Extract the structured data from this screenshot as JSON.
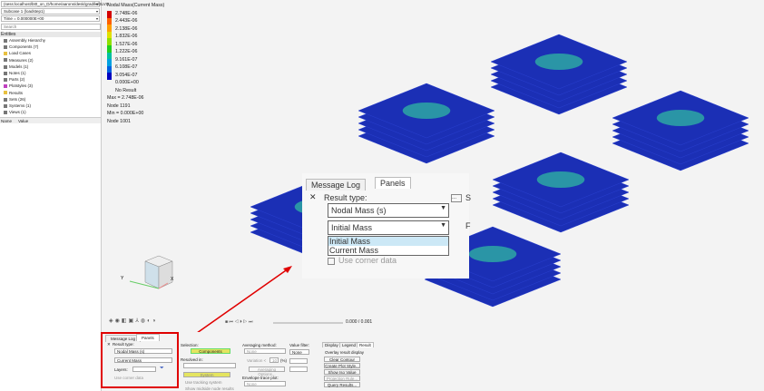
{
  "left": {
    "session": "(sess:localhost/bt0_on_D/home/aarons/desk/grad/kt/3LVO",
    "subcase": "Subcase 1 (loadstep1)",
    "time": "Time = 0.000000E+00",
    "search_placeholder": "Search",
    "entities_label": "Entities",
    "tree": [
      "Assembly Hierarchy",
      "Components (7)",
      "Load Cases",
      "Measures (2)",
      "Models (1)",
      "Notes (1)",
      "Parts (2)",
      "Plotstyles (3)",
      "Results",
      "Sets (26)",
      "Systems (1)",
      "Views (1)"
    ],
    "col_name": "Name",
    "col_value": "Value"
  },
  "legend": {
    "title": "Nodal Mass(Current Mass)",
    "values": [
      "2.748E-06",
      "2.443E-06",
      "2.138E-06",
      "1.832E-06",
      "1.527E-06",
      "1.222E-06",
      "9.161E-07",
      "6.108E-07",
      "3.054E-07",
      "0.000E+00"
    ],
    "colors": [
      "#d40000",
      "#ff6000",
      "#ffa000",
      "#e0e000",
      "#90e000",
      "#20d020",
      "#00c0a0",
      "#00a0e0",
      "#0060e0",
      "#0000c0"
    ],
    "no_result": "No Result",
    "max": "Max =  2.748E-06",
    "max_node": "Node 1191",
    "min": "Min =  0.000E+00",
    "min_node": "Node 1001"
  },
  "cube": {
    "x": "X",
    "y": "Y",
    "top": "TOP",
    "front": "FRONT",
    "left": "LEFT"
  },
  "anim": {
    "time": "0.000 / 0.001"
  },
  "zoomed": {
    "tab1": "Message Log",
    "tab2": "Panels",
    "result_type": "Result type:",
    "type_value": "Nodal Mass (s)",
    "sub_value": "Initial Mass",
    "options": [
      "Initial Mass",
      "Current Mass"
    ],
    "corner": "Use corner data",
    "s": "S",
    "f": "F",
    "dots": "..."
  },
  "panel": {
    "tab1": "Message Log",
    "tab2": "Panels",
    "result_type": "Result type:",
    "type_value": "Nodal Mass (s)",
    "sub_value": "Current Mass",
    "layers": "Layers:",
    "corner": "Use corner data",
    "selection": "Selection:",
    "components": "Components",
    "resolved": "Resolved in:",
    "system": "System",
    "tracking": "Use tracking system",
    "midside": "Show midside node results",
    "averaging": "Averaging method:",
    "avg_value": "None",
    "variation": "Variation <",
    "var_value": "10",
    "pct": "(%)",
    "avg_options": "Averaging Options...",
    "envelope": "Envelope trace plot:",
    "env_value": "None",
    "value_filter": "Value filter:",
    "filter_value": "None",
    "rtabs": [
      "Display",
      "Legend",
      "Result"
    ],
    "overlay": "Overlay result display",
    "buttons": [
      "Clear Contour",
      "Create Plot Style...",
      "Show Iso Value",
      "Projection Rule...",
      "Query Results..."
    ]
  },
  "colors": {
    "highlight_red": "#e00000",
    "plate_blue": "#1b2fb5",
    "button_yellow": "#e4e460",
    "components_green": "#66dd66"
  }
}
